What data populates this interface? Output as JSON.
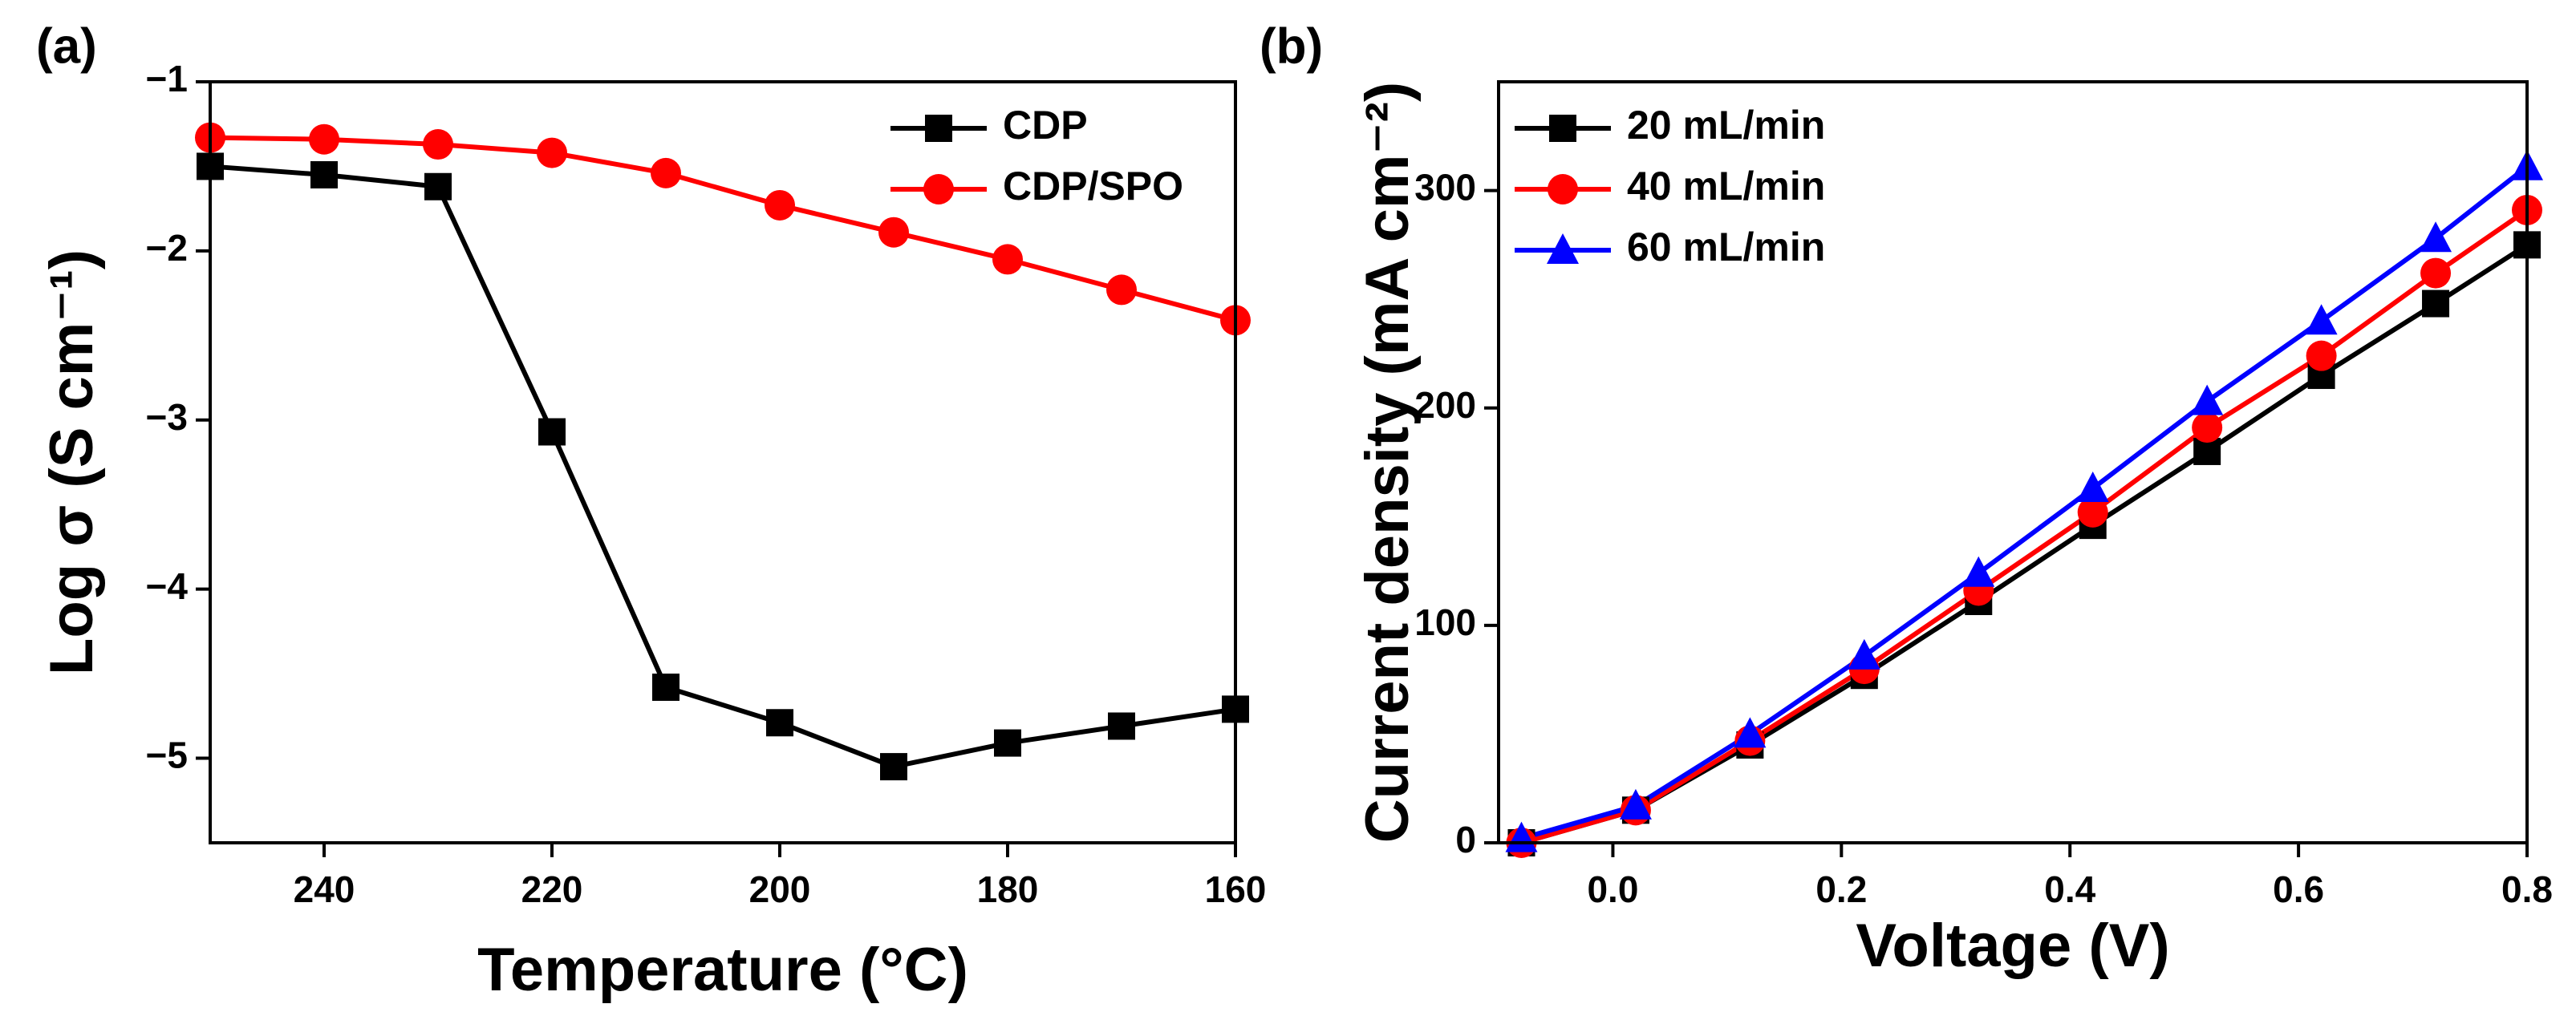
{
  "chart_data": [
    {
      "type": "line",
      "panel_label": "(a)",
      "x_label": "Temperature (°C)",
      "y_label": "Log σ (S cm⁻¹)",
      "x": [
        250,
        240,
        230,
        220,
        210,
        200,
        190,
        180,
        170,
        160
      ],
      "series": [
        {
          "name": "CDP",
          "color": "#000000",
          "marker": "square",
          "values": [
            -1.5,
            -1.55,
            -1.62,
            -3.07,
            -4.58,
            -4.79,
            -5.05,
            -4.91,
            -4.81,
            -4.71
          ]
        },
        {
          "name": "CDP/SPO",
          "color": "#ff0000",
          "marker": "circle",
          "values": [
            -1.33,
            -1.34,
            -1.37,
            -1.42,
            -1.54,
            -1.73,
            -1.89,
            -2.05,
            -2.23,
            -2.41
          ]
        }
      ],
      "xlim": [
        250,
        160
      ],
      "xticks": [
        240,
        220,
        200,
        180,
        160
      ],
      "ylim": [
        -5.5,
        -1
      ],
      "yticks": [
        {
          "value": -1,
          "label": "−1"
        },
        {
          "value": -2,
          "label": "−2"
        },
        {
          "value": -3,
          "label": "−3"
        },
        {
          "value": -4,
          "label": "−4"
        },
        {
          "value": -5,
          "label": "−5"
        }
      ],
      "legend": "upper right"
    },
    {
      "type": "line",
      "panel_label": "(b)",
      "x_label": "Voltage (V)",
      "y_label": "Current density (mA cm⁻²)",
      "x": [
        -0.08,
        0.02,
        0.12,
        0.22,
        0.32,
        0.42,
        0.52,
        0.62,
        0.72,
        0.8
      ],
      "series": [
        {
          "name": "20 mL/min",
          "color": "#000000",
          "marker": "square",
          "values": [
            0,
            15,
            45,
            77,
            111,
            146,
            180,
            215,
            248,
            275
          ]
        },
        {
          "name": "40 mL/min",
          "color": "#ff0000",
          "marker": "circle",
          "values": [
            0,
            15,
            47,
            80,
            116,
            152,
            191,
            224,
            262,
            291
          ]
        },
        {
          "name": "60 mL/min",
          "color": "#0000ff",
          "marker": "triangle",
          "values": [
            2,
            17,
            50,
            86,
            124,
            163,
            203,
            240,
            278,
            311
          ]
        }
      ],
      "xlim": [
        -0.1,
        0.8
      ],
      "xticks": [
        {
          "value": 0,
          "label": "0.0"
        },
        0.2,
        0.4,
        0.6,
        0.8
      ],
      "ylim": [
        0,
        350
      ],
      "yticks": [
        0,
        100,
        200,
        300
      ],
      "legend": "upper left"
    }
  ]
}
